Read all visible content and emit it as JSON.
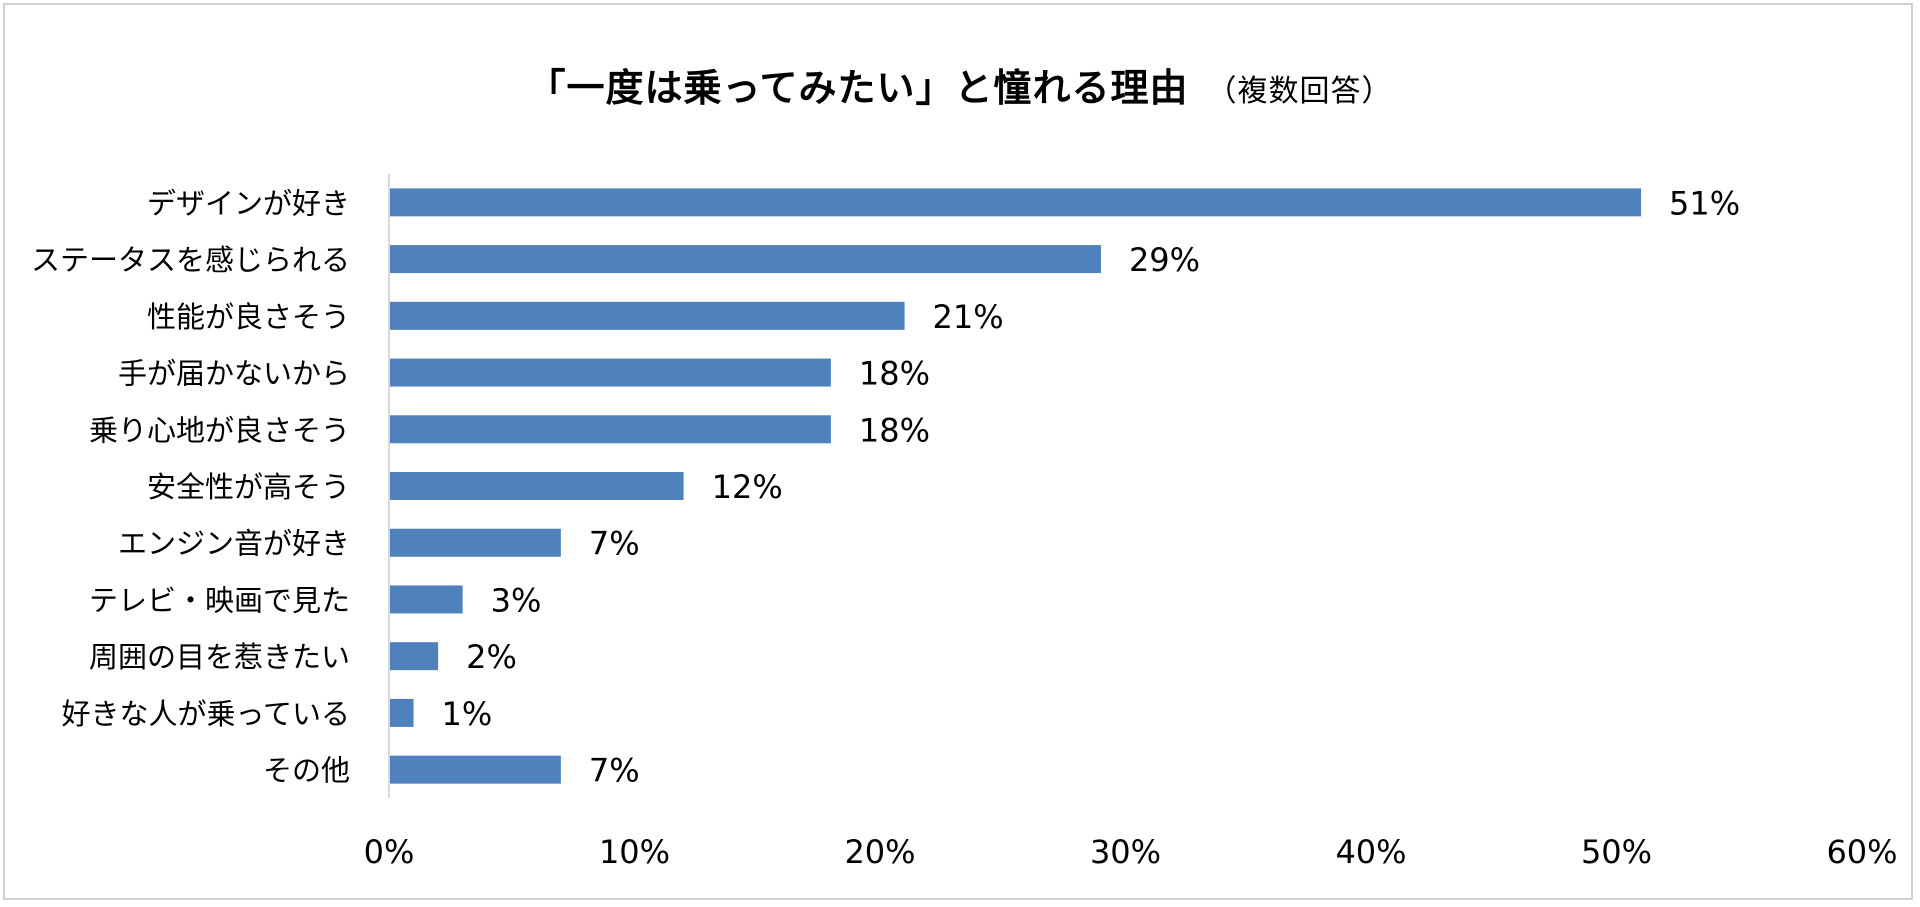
{
  "chart_data": {
    "type": "bar",
    "orientation": "horizontal",
    "title": "「一度は乗ってみたい」と憧れる理由",
    "subtitle": "（複数回答）",
    "categories": [
      "デザインが好き",
      "ステータスを感じられる",
      "性能が良さそう",
      "手が届かないから",
      "乗り心地が良さそう",
      "安全性が高そう",
      "エンジン音が好き",
      "テレビ・映画で見た",
      "周囲の目を惹きたい",
      "好きな人が乗っている",
      "その他"
    ],
    "values": [
      51,
      29,
      21,
      18,
      18,
      12,
      7,
      3,
      2,
      1,
      7
    ],
    "data_labels": [
      "51%",
      "29%",
      "21%",
      "18%",
      "18%",
      "12%",
      "7%",
      "3%",
      "2%",
      "1%",
      "7%"
    ],
    "xlim": [
      0,
      60
    ],
    "xticks": [
      0,
      10,
      20,
      30,
      40,
      50,
      60
    ],
    "xtick_labels": [
      "0%",
      "10%",
      "20%",
      "30%",
      "40%",
      "50%",
      "60%"
    ],
    "xlabel": "",
    "ylabel": "",
    "grid": false,
    "legend": "none",
    "bar_color": "#4f81bd"
  }
}
